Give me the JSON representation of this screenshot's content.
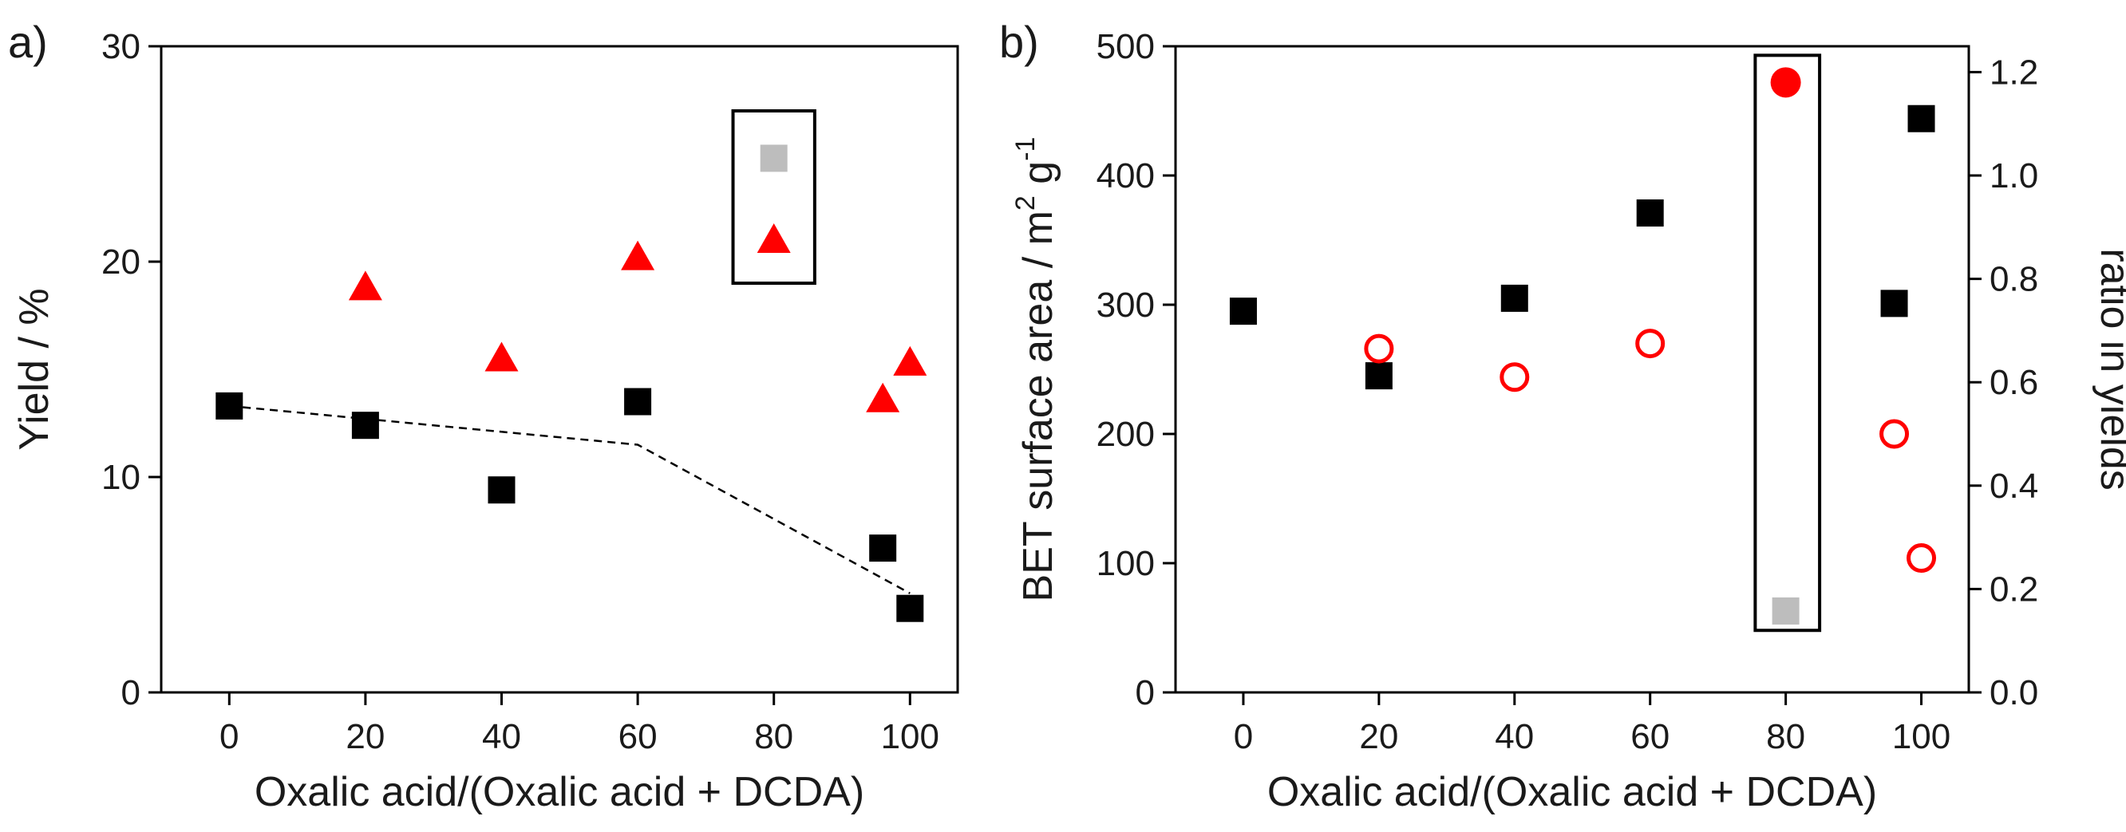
{
  "chart_data": [
    {
      "panel": "a)",
      "type": "scatter",
      "xlabel": "Oxalic acid/(Oxalic acid + DCDA)",
      "ylabel": "Yield / %",
      "xlim": [
        -10,
        107
      ],
      "ylim": [
        0,
        30
      ],
      "xticks": [
        "0",
        "20",
        "40",
        "60",
        "80",
        "100"
      ],
      "yticks": [
        "0",
        "10",
        "20",
        "30"
      ],
      "highlight_box": {
        "x_range": [
          74,
          86
        ],
        "y_range": [
          19.0,
          27.0
        ]
      },
      "series": [
        {
          "name": "yield-squares",
          "marker": "square",
          "color": "#000000",
          "points": [
            {
              "x": 0,
              "y": 13.3
            },
            {
              "x": 20,
              "y": 12.4
            },
            {
              "x": 40,
              "y": 9.4
            },
            {
              "x": 60,
              "y": 13.5
            },
            {
              "x": 96,
              "y": 6.7
            },
            {
              "x": 100,
              "y": 3.9
            }
          ]
        },
        {
          "name": "yield-square-gray",
          "marker": "square",
          "color": "#bdbdbd",
          "points": [
            {
              "x": 80,
              "y": 24.8
            }
          ]
        },
        {
          "name": "yield-triangles",
          "marker": "triangle",
          "color": "#ff0000",
          "points": [
            {
              "x": 20,
              "y": 18.8
            },
            {
              "x": 40,
              "y": 15.5
            },
            {
              "x": 60,
              "y": 20.2
            },
            {
              "x": 80,
              "y": 21.0
            },
            {
              "x": 96,
              "y": 13.6
            },
            {
              "x": 100,
              "y": 15.3
            }
          ]
        },
        {
          "name": "trend-dashed",
          "marker": "dashed-line",
          "color": "#000000",
          "points": [
            {
              "x": 0,
              "y": 13.3
            },
            {
              "x": 60,
              "y": 11.5
            },
            {
              "x": 100,
              "y": 4.6
            }
          ]
        }
      ]
    },
    {
      "panel": "b)",
      "type": "scatter",
      "xlabel": "Oxalic acid/(Oxalic acid + DCDA)",
      "ylabel": "BET surface area / m",
      "ylabel_sup1": "2",
      "ylabel_mid": " g",
      "ylabel_sup2": "-1",
      "y2label": "ratio in yields",
      "xlim": [
        -10,
        107
      ],
      "ylim": [
        0,
        500
      ],
      "y2lim": [
        0.0,
        1.25
      ],
      "xticks": [
        "0",
        "20",
        "40",
        "60",
        "80",
        "100"
      ],
      "yticks": [
        "0",
        "100",
        "200",
        "300",
        "400",
        "500"
      ],
      "y2ticks": [
        "0.0",
        "0.2",
        "0.4",
        "0.6",
        "0.8",
        "1.0",
        "1.2"
      ],
      "highlight_box": {
        "x_range": [
          75.5,
          85
        ],
        "y_range": [
          48,
          493
        ]
      },
      "series": [
        {
          "name": "bet-squares",
          "axis": "left",
          "marker": "square",
          "color": "#000000",
          "points": [
            {
              "x": 0,
              "y": 295
            },
            {
              "x": 20,
              "y": 245
            },
            {
              "x": 40,
              "y": 305
            },
            {
              "x": 60,
              "y": 371
            },
            {
              "x": 96,
              "y": 301
            },
            {
              "x": 100,
              "y": 444
            }
          ]
        },
        {
          "name": "bet-square-gray",
          "axis": "left",
          "marker": "square",
          "color": "#bdbdbd",
          "points": [
            {
              "x": 80,
              "y": 63
            }
          ]
        },
        {
          "name": "ratio-open-circles",
          "axis": "right",
          "marker": "circle-open",
          "color": "#ff0000",
          "points": [
            {
              "x": 20,
              "y": 0.665
            },
            {
              "x": 40,
              "y": 0.61
            },
            {
              "x": 60,
              "y": 0.675
            },
            {
              "x": 96,
              "y": 0.5
            },
            {
              "x": 100,
              "y": 0.26
            }
          ]
        },
        {
          "name": "ratio-filled-circle",
          "axis": "right",
          "marker": "circle-filled",
          "color": "#ff0000",
          "points": [
            {
              "x": 80,
              "y": 1.18
            }
          ]
        }
      ]
    }
  ]
}
